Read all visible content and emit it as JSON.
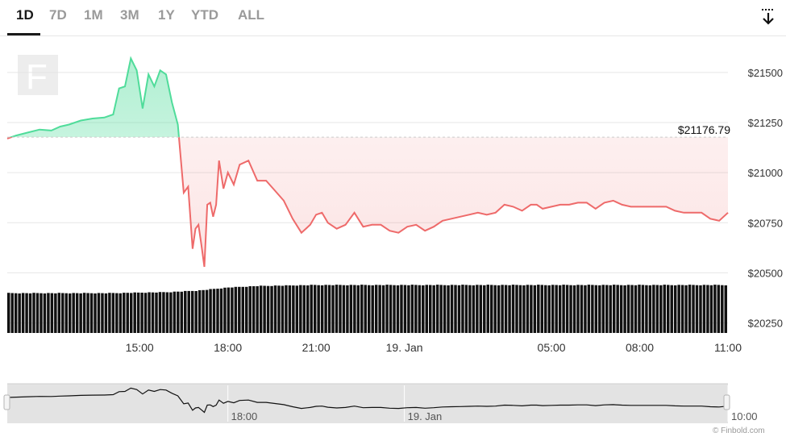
{
  "tabs": [
    {
      "label": "1D",
      "active": true
    },
    {
      "label": "7D",
      "active": false
    },
    {
      "label": "1M",
      "active": false
    },
    {
      "label": "3M",
      "active": false
    },
    {
      "label": "1Y",
      "active": false
    },
    {
      "label": "YTD",
      "active": false
    },
    {
      "label": "ALL",
      "active": false
    }
  ],
  "toolbar": {
    "export_icon": "download-arrow-icon"
  },
  "watermark_icon": "finbold-f-logo-icon",
  "credit": "© Finbold.com",
  "chart_data": {
    "type": "area",
    "reference_line": {
      "value": 21176.79,
      "label": "$21176.79"
    },
    "ylim": [
      20200,
      21620
    ],
    "yticks": [
      20250,
      20500,
      20750,
      21000,
      21250,
      21500
    ],
    "ytick_labels": [
      "$20250",
      "$20500",
      "$20750",
      "$21000",
      "$21250",
      "$21500"
    ],
    "xticks": [
      15,
      18,
      21,
      24,
      29,
      32,
      35
    ],
    "xtick_labels": [
      "15:00",
      "18:00",
      "21:00",
      "19. Jan",
      "05:00",
      "08:00",
      "11:00"
    ],
    "xlim": [
      10.5,
      35
    ],
    "colors": {
      "above": "#4fdc9a",
      "below": "#ee6a6a",
      "volume": "#111111"
    },
    "price": {
      "x": [
        10.5,
        10.8,
        11.2,
        11.6,
        12.0,
        12.3,
        12.6,
        13.0,
        13.4,
        13.8,
        14.1,
        14.3,
        14.5,
        14.7,
        14.9,
        15.1,
        15.3,
        15.5,
        15.7,
        15.9,
        16.1,
        16.3,
        16.5,
        16.65,
        16.8,
        16.9,
        17.0,
        17.1,
        17.2,
        17.3,
        17.4,
        17.5,
        17.6,
        17.7,
        17.85,
        18.0,
        18.2,
        18.4,
        18.7,
        19.0,
        19.3,
        19.6,
        19.9,
        20.2,
        20.5,
        20.8,
        21.0,
        21.2,
        21.4,
        21.7,
        22.0,
        22.3,
        22.6,
        22.9,
        23.2,
        23.5,
        23.8,
        24.1,
        24.4,
        24.7,
        25.0,
        25.3,
        25.6,
        25.9,
        26.2,
        26.5,
        26.8,
        27.1,
        27.4,
        27.7,
        28.0,
        28.3,
        28.5,
        28.7,
        29.0,
        29.3,
        29.6,
        29.9,
        30.2,
        30.5,
        30.8,
        31.1,
        31.4,
        31.7,
        32.0,
        32.3,
        32.6,
        32.9,
        33.2,
        33.5,
        33.8,
        34.1,
        34.4,
        34.7,
        35.0
      ],
      "y": [
        21170,
        21185,
        21200,
        21215,
        21210,
        21230,
        21240,
        21260,
        21270,
        21275,
        21290,
        21420,
        21430,
        21570,
        21510,
        21320,
        21490,
        21430,
        21510,
        21490,
        21350,
        21240,
        20900,
        20930,
        20620,
        20720,
        20740,
        20640,
        20530,
        20840,
        20850,
        20780,
        20840,
        21060,
        20920,
        21000,
        20940,
        21040,
        21060,
        20960,
        20960,
        20910,
        20860,
        20770,
        20700,
        20740,
        20790,
        20800,
        20750,
        20720,
        20740,
        20800,
        20730,
        20740,
        20740,
        20710,
        20700,
        20730,
        20740,
        20710,
        20730,
        20760,
        20770,
        20780,
        20790,
        20800,
        20790,
        20800,
        20840,
        20830,
        20810,
        20840,
        20840,
        20820,
        20830,
        20840,
        20840,
        20850,
        20850,
        20820,
        20850,
        20860,
        20840,
        20830,
        20830,
        20830,
        20830,
        20830,
        20810,
        20800,
        20800,
        20800,
        20770,
        20760,
        20800
      ]
    },
    "volume": {
      "bars": 200,
      "profile_x": [
        10.5,
        14.0,
        15.0,
        16.0,
        17.0,
        17.5,
        18.0,
        19.0,
        21.0,
        24.0,
        35.0
      ],
      "profile_level": [
        0.79,
        0.79,
        0.8,
        0.81,
        0.84,
        0.87,
        0.9,
        0.93,
        0.95,
        0.95,
        0.95
      ]
    },
    "navigator": {
      "xtick_labels": [
        "18:00",
        "19. Jan",
        "10:00"
      ],
      "xticks": [
        18,
        24,
        35
      ]
    }
  }
}
